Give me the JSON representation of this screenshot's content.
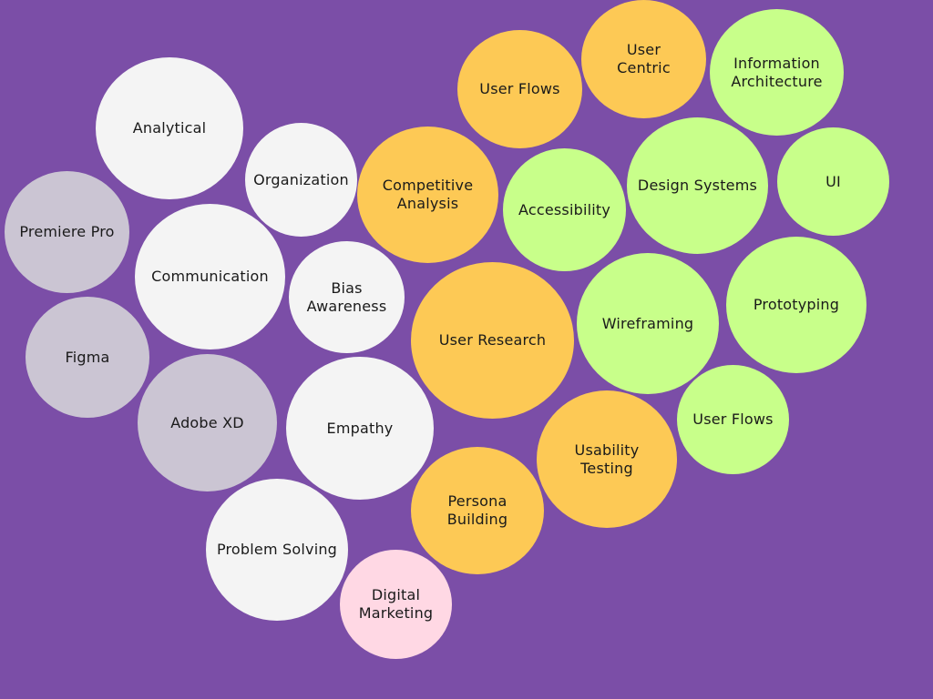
{
  "colors": {
    "background": "#7b4ea7",
    "soft_skill": "#f4f4f4",
    "tool": "#cbc5d3",
    "research": "#fdc955",
    "design": "#c8ff8a",
    "marketing": "#ffd8e4"
  },
  "bubbles": [
    {
      "label": "Analytical",
      "category": "soft"
    },
    {
      "label": "Organization",
      "category": "soft"
    },
    {
      "label": "Premiere Pro",
      "category": "tool"
    },
    {
      "label": "Communication",
      "category": "soft"
    },
    {
      "label": "Bias\nAwareness",
      "category": "soft"
    },
    {
      "label": "Figma",
      "category": "tool"
    },
    {
      "label": "Adobe XD",
      "category": "tool"
    },
    {
      "label": "Empathy",
      "category": "soft"
    },
    {
      "label": "Problem Solving",
      "category": "soft"
    },
    {
      "label": "Digital\nMarketing",
      "category": "marketing"
    },
    {
      "label": "User Flows",
      "category": "research"
    },
    {
      "label": "User\nCentric",
      "category": "research"
    },
    {
      "label": "Competitive\nAnalysis",
      "category": "research"
    },
    {
      "label": "User Research",
      "category": "research"
    },
    {
      "label": "Usability\nTesting",
      "category": "research"
    },
    {
      "label": "Persona\nBuilding",
      "category": "research"
    },
    {
      "label": "Information\nArchitecture",
      "category": "design"
    },
    {
      "label": "Accessibility",
      "category": "design"
    },
    {
      "label": "Design Systems",
      "category": "design"
    },
    {
      "label": "UI",
      "category": "design"
    },
    {
      "label": "Wireframing",
      "category": "design"
    },
    {
      "label": "Prototyping",
      "category": "design"
    },
    {
      "label": "User Flows",
      "category": "design"
    }
  ]
}
